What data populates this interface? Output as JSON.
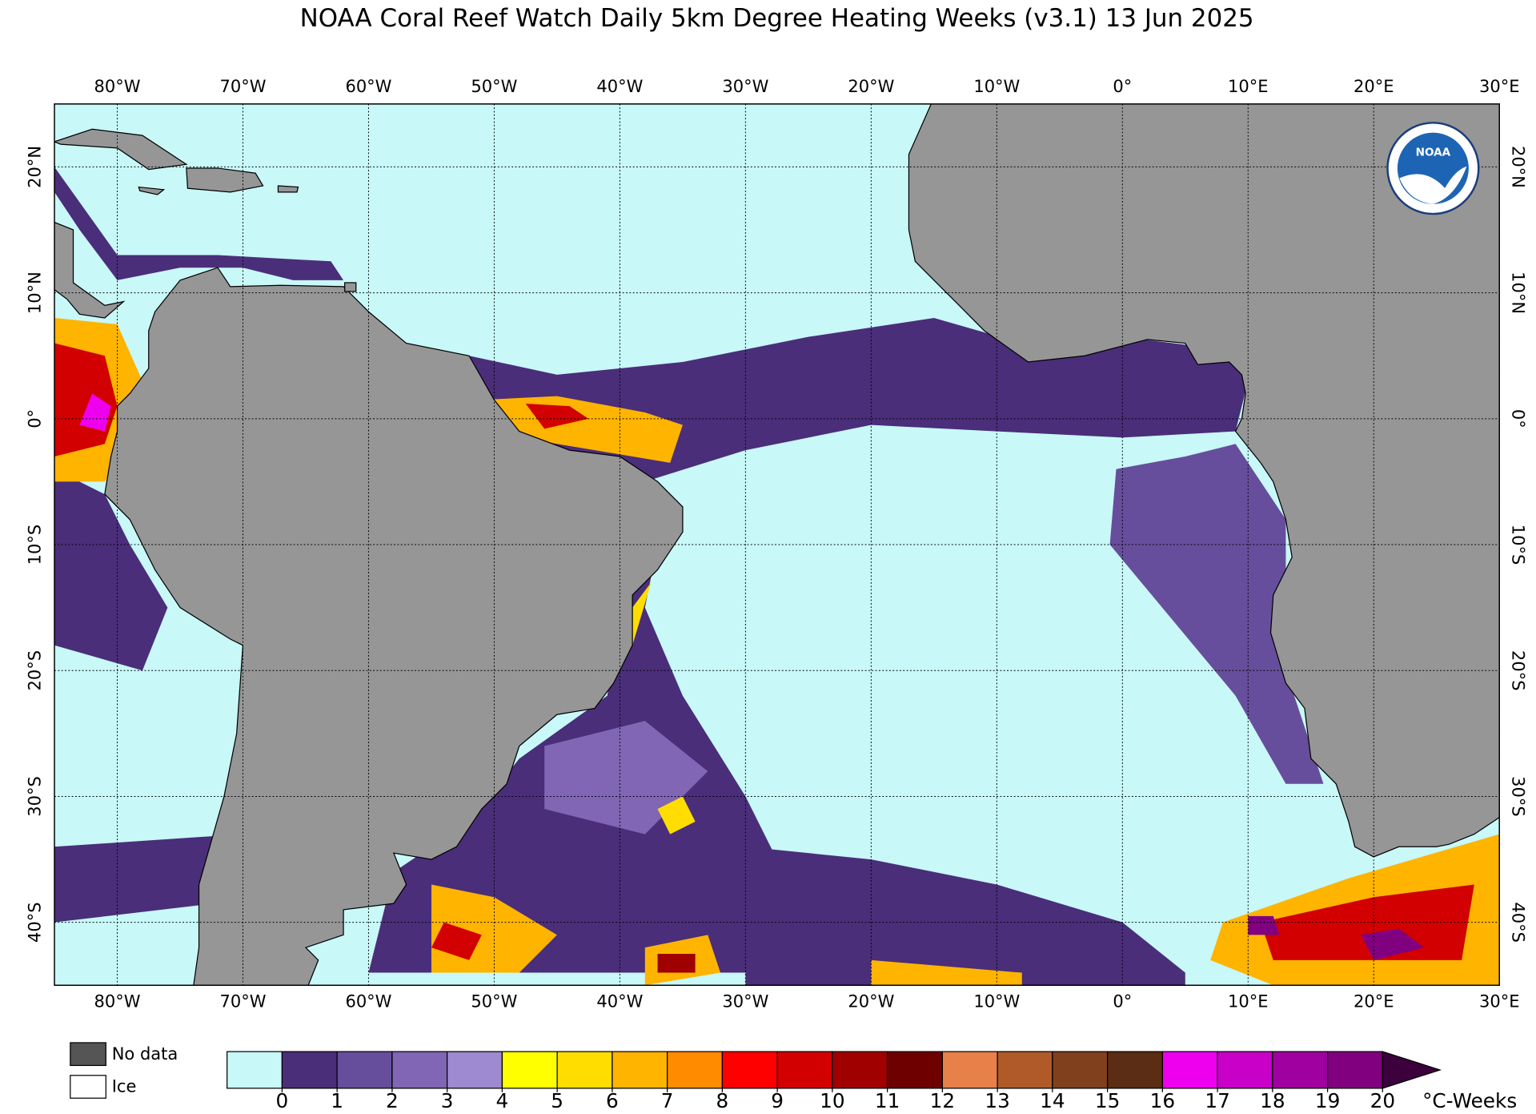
{
  "title": "NOAA Coral Reef Watch Daily 5km Degree Heating Weeks  (v3.1)   13 Jun 2025",
  "map": {
    "lon_ticks": [
      {
        "value": -80,
        "label": "80°W"
      },
      {
        "value": -70,
        "label": "70°W"
      },
      {
        "value": -60,
        "label": "60°W"
      },
      {
        "value": -50,
        "label": "50°W"
      },
      {
        "value": -40,
        "label": "40°W"
      },
      {
        "value": -30,
        "label": "30°W"
      },
      {
        "value": -20,
        "label": "20°W"
      },
      {
        "value": -10,
        "label": "10°W"
      },
      {
        "value": 0,
        "label": "0°"
      },
      {
        "value": 10,
        "label": "10°E"
      },
      {
        "value": 20,
        "label": "20°E"
      },
      {
        "value": 30,
        "label": "30°E"
      }
    ],
    "lat_ticks": [
      {
        "value": 20,
        "label": "20°N"
      },
      {
        "value": 10,
        "label": "10°N"
      },
      {
        "value": 0,
        "label": "0°"
      },
      {
        "value": -10,
        "label": "10°S"
      },
      {
        "value": -20,
        "label": "20°S"
      },
      {
        "value": -30,
        "label": "30°S"
      },
      {
        "value": -40,
        "label": "40°S"
      }
    ]
  },
  "logo": {
    "text": "NOAA"
  },
  "legend": [
    {
      "label": "No data",
      "color": "#555555"
    },
    {
      "label": "Ice",
      "color": "#ffffff"
    }
  ],
  "colorbar": {
    "ticks": [
      0,
      1,
      2,
      3,
      4,
      5,
      6,
      7,
      8,
      9,
      10,
      11,
      12,
      13,
      14,
      15,
      16,
      17,
      18,
      19,
      20
    ],
    "colors": [
      "#c8f8f8",
      "#4a2e7a",
      "#674e9c",
      "#8066b4",
      "#9e8ad0",
      "#ffff00",
      "#ffdd00",
      "#ffb400",
      "#ff8c00",
      "#ff0000",
      "#d20000",
      "#a00000",
      "#6e0000",
      "#e8804a",
      "#b05a2a",
      "#80401e",
      "#5a2d14",
      "#ee00ee",
      "#c800c8",
      "#a000a0",
      "#800080",
      "#3c003c"
    ],
    "unit": "°C-Weeks"
  }
}
